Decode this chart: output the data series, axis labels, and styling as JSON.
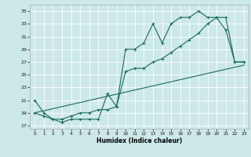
{
  "xlabel": "Humidex (Indice chaleur)",
  "bg_color": "#cce8e8",
  "grid_color": "#ffffff",
  "line_color": "#1a6b5a",
  "xlim": [
    -0.5,
    23.5
  ],
  "ylim": [
    16.5,
    36
  ],
  "yticks": [
    17,
    19,
    21,
    23,
    25,
    27,
    29,
    31,
    33,
    35
  ],
  "xticks": [
    0,
    1,
    2,
    3,
    4,
    5,
    6,
    7,
    8,
    9,
    10,
    11,
    12,
    13,
    14,
    15,
    16,
    17,
    18,
    19,
    20,
    21,
    22,
    23
  ],
  "series1_x": [
    0,
    1,
    2,
    3,
    4,
    5,
    6,
    7,
    8,
    9,
    10,
    11,
    12,
    13,
    14,
    15,
    16,
    17,
    18,
    19,
    20,
    21,
    22,
    23
  ],
  "series1_y": [
    21,
    19,
    18,
    17.5,
    18,
    18,
    18,
    18,
    22,
    20,
    29,
    29,
    30,
    33,
    30,
    33,
    34,
    34,
    35,
    34,
    34,
    32,
    27,
    27
  ],
  "series2_x": [
    0,
    1,
    2,
    3,
    4,
    5,
    6,
    7,
    8,
    9,
    10,
    11,
    12,
    13,
    14,
    15,
    16,
    17,
    18,
    19,
    20,
    21,
    22,
    23
  ],
  "series2_y": [
    19,
    18.5,
    18,
    18,
    18.5,
    19,
    19,
    19.5,
    19.5,
    20,
    25.5,
    26,
    26,
    27,
    27.5,
    28.5,
    29.5,
    30.5,
    31.5,
    33,
    34,
    34,
    27,
    27
  ],
  "series3_x": [
    0,
    23
  ],
  "series3_y": [
    19,
    26.5
  ]
}
